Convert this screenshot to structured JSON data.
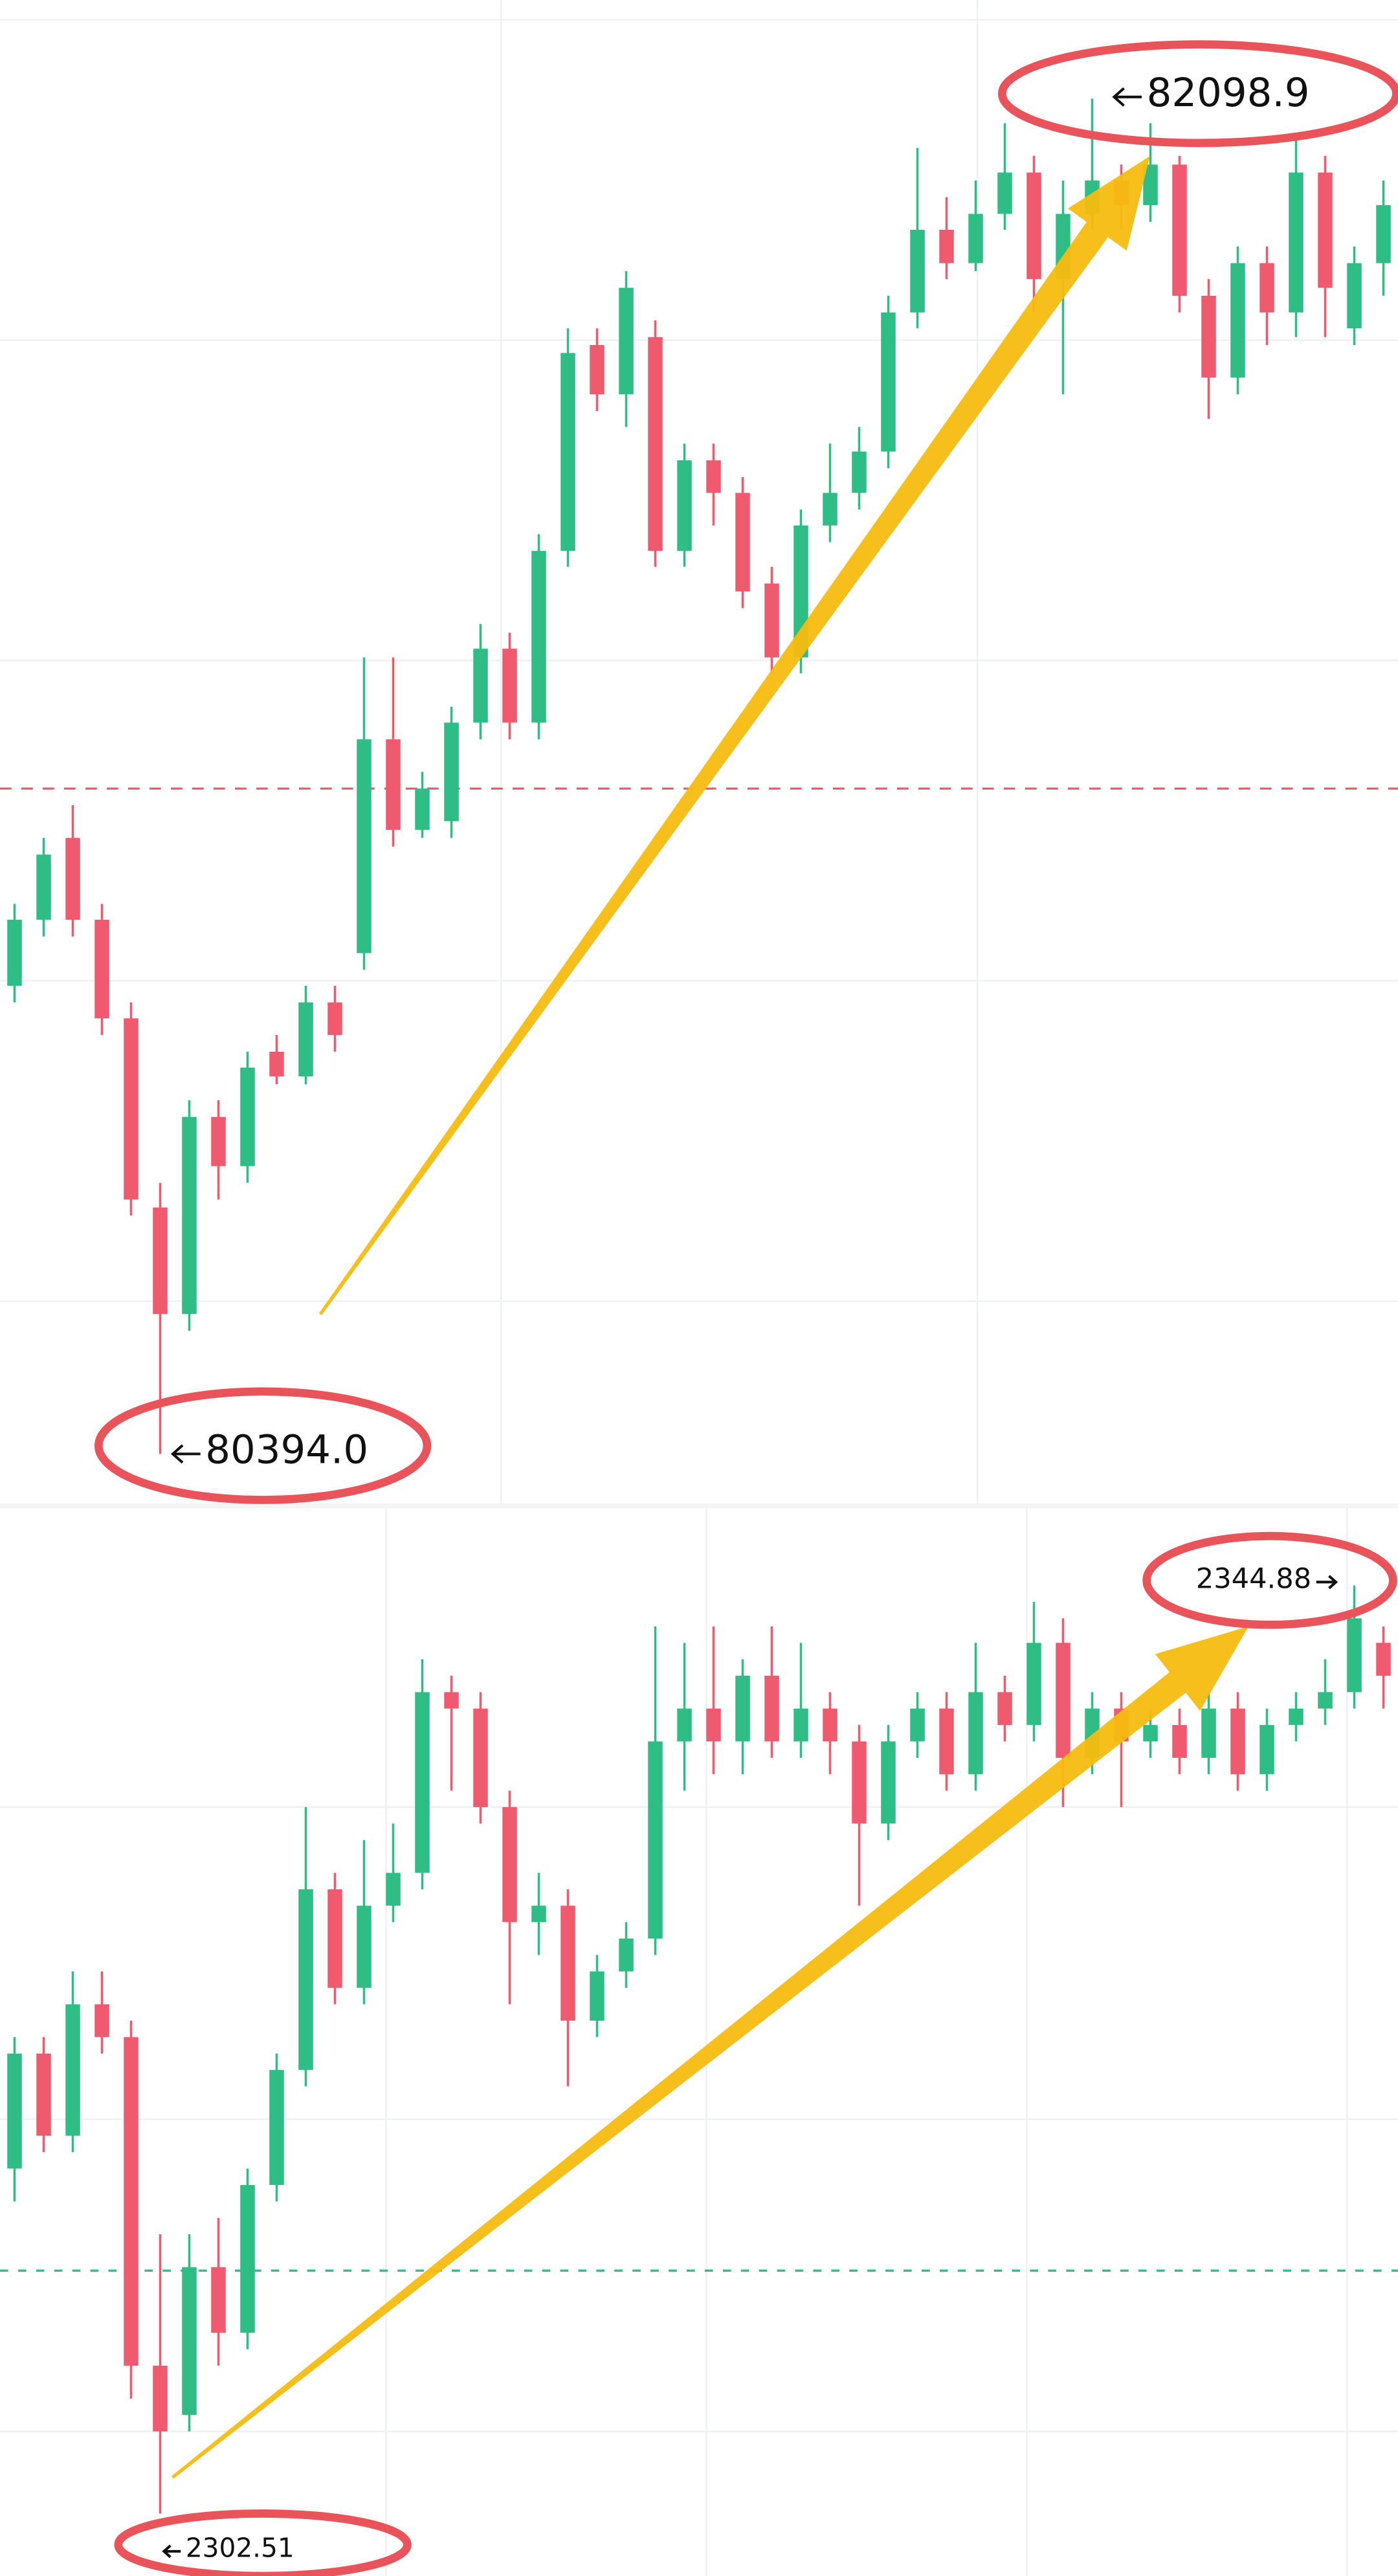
{
  "chart_data": [
    {
      "type": "candlestick",
      "up_color": "#2ebd85",
      "down_color": "#ef5a6f",
      "ylim": [
        80332,
        82223
      ],
      "price_line": 81231,
      "price_line_color": "#ef5a6f",
      "ohlc": [
        [
          80983,
          81086,
          80962,
          81066
        ],
        [
          81066,
          81169,
          81045,
          81148
        ],
        [
          81169,
          81210,
          81045,
          81066
        ],
        [
          81066,
          81086,
          80921,
          80942
        ],
        [
          80942,
          80962,
          80694,
          80714
        ],
        [
          80704,
          80735,
          80394.0,
          80570
        ],
        [
          80570,
          80839,
          80549,
          80818
        ],
        [
          80818,
          80839,
          80714,
          80756
        ],
        [
          80756,
          80900,
          80735,
          80880
        ],
        [
          80900,
          80921,
          80859,
          80869
        ],
        [
          80869,
          80983,
          80859,
          80962
        ],
        [
          80962,
          80983,
          80900,
          80921
        ],
        [
          81024,
          81396,
          81003,
          81293
        ],
        [
          81293,
          81396,
          81158,
          81179
        ],
        [
          81179,
          81252,
          81169,
          81231
        ],
        [
          81190,
          81334,
          81169,
          81314
        ],
        [
          81314,
          81438,
          81293,
          81407
        ],
        [
          81407,
          81427,
          81293,
          81314
        ],
        [
          81314,
          81551,
          81293,
          81530
        ],
        [
          81530,
          81810,
          81510,
          81779
        ],
        [
          81789,
          81810,
          81706,
          81727
        ],
        [
          81727,
          81882,
          81686,
          81861
        ],
        [
          81799,
          81820,
          81510,
          81530
        ],
        [
          81530,
          81665,
          81510,
          81644
        ],
        [
          81644,
          81665,
          81562,
          81603
        ],
        [
          81603,
          81623,
          81458,
          81479
        ],
        [
          81489,
          81510,
          81376,
          81396
        ],
        [
          81396,
          81582,
          81376,
          81562
        ],
        [
          81562,
          81665,
          81541,
          81603
        ],
        [
          81603,
          81686,
          81582,
          81655
        ],
        [
          81655,
          81851,
          81634,
          81830
        ],
        [
          81830,
          82037,
          81810,
          81934
        ],
        [
          81934,
          81975,
          81872,
          81892
        ],
        [
          81892,
          81996,
          81882,
          81954
        ],
        [
          81954,
          82068,
          81934,
          82006
        ],
        [
          82006,
          82027,
          81830,
          81872
        ],
        [
          81872,
          81996,
          81727,
          81954
        ],
        [
          81954,
          82098.9,
          81934,
          81996
        ],
        [
          81996,
          82016,
          81934,
          81965
        ],
        [
          81965,
          82068,
          81944,
          82016
        ],
        [
          82016,
          82027,
          81830,
          81851
        ],
        [
          81851,
          81872,
          81696,
          81748
        ],
        [
          81748,
          81913,
          81727,
          81892
        ],
        [
          81892,
          81913,
          81789,
          81830
        ],
        [
          81830,
          82047,
          81799,
          82006
        ],
        [
          82006,
          82027,
          81799,
          81861
        ],
        [
          81810,
          81913,
          81789,
          81892
        ],
        [
          81892,
          81996,
          81851,
          81965
        ]
      ],
      "annotations": [
        {
          "text": "82098.9",
          "value": 82098.9
        },
        {
          "text": "80394.0",
          "value": 80394.0
        }
      ]
    },
    {
      "type": "candlestick",
      "up_color": "#2ebd85",
      "down_color": "#ef5a6f",
      "ylim": [
        2299.66,
        2348.41
      ],
      "price_line": 2313.6,
      "price_line_color": "#2ebd85",
      "ohlc": [
        [
          2318.26,
          2324.26,
          2316.76,
          2323.51
        ],
        [
          2323.51,
          2324.26,
          2319.01,
          2319.76
        ],
        [
          2319.76,
          2327.26,
          2319.01,
          2325.76
        ],
        [
          2325.76,
          2327.26,
          2323.51,
          2324.26
        ],
        [
          2324.26,
          2325.01,
          2307.76,
          2309.26
        ],
        [
          2309.26,
          2315.26,
          2302.51,
          2306.26
        ],
        [
          2307.01,
          2315.26,
          2306.26,
          2313.76
        ],
        [
          2313.76,
          2316.01,
          2309.26,
          2310.76
        ],
        [
          2310.76,
          2318.26,
          2310.01,
          2317.51
        ],
        [
          2317.51,
          2323.51,
          2316.76,
          2322.76
        ],
        [
          2322.76,
          2334.76,
          2322.01,
          2331.01
        ],
        [
          2331.01,
          2331.76,
          2325.76,
          2326.51
        ],
        [
          2326.51,
          2333.26,
          2325.76,
          2330.26
        ],
        [
          2330.26,
          2334.01,
          2329.51,
          2331.76
        ],
        [
          2331.76,
          2341.51,
          2331.01,
          2340.01
        ],
        [
          2340.01,
          2340.76,
          2335.51,
          2339.26
        ],
        [
          2339.26,
          2340.01,
          2334.01,
          2334.76
        ],
        [
          2334.76,
          2335.51,
          2325.76,
          2329.51
        ],
        [
          2329.51,
          2331.76,
          2328.01,
          2330.26
        ],
        [
          2330.26,
          2331.01,
          2322.01,
          2325.01
        ],
        [
          2325.01,
          2328.01,
          2324.26,
          2327.26
        ],
        [
          2327.26,
          2329.51,
          2326.51,
          2328.76
        ],
        [
          2328.76,
          2343.01,
          2328.01,
          2337.76
        ],
        [
          2337.76,
          2342.26,
          2335.51,
          2339.26
        ],
        [
          2339.26,
          2343.01,
          2336.26,
          2337.76
        ],
        [
          2337.76,
          2341.51,
          2336.26,
          2340.76
        ],
        [
          2340.76,
          2343.01,
          2337.01,
          2337.76
        ],
        [
          2337.76,
          2342.26,
          2337.01,
          2339.26
        ],
        [
          2339.26,
          2340.01,
          2336.26,
          2337.76
        ],
        [
          2337.76,
          2338.51,
          2330.26,
          2334.01
        ],
        [
          2334.01,
          2338.51,
          2333.26,
          2337.76
        ],
        [
          2337.76,
          2340.01,
          2337.01,
          2339.26
        ],
        [
          2339.26,
          2340.01,
          2335.51,
          2336.26
        ],
        [
          2336.26,
          2342.26,
          2335.51,
          2340.01
        ],
        [
          2340.01,
          2340.76,
          2337.76,
          2338.51
        ],
        [
          2338.51,
          2344.13,
          2337.76,
          2342.26
        ],
        [
          2342.26,
          2343.38,
          2334.76,
          2337.01
        ],
        [
          2337.01,
          2340.01,
          2336.26,
          2339.26
        ],
        [
          2339.26,
          2340.01,
          2334.76,
          2337.76
        ],
        [
          2337.76,
          2339.26,
          2337.01,
          2338.51
        ],
        [
          2338.51,
          2339.26,
          2336.26,
          2337.01
        ],
        [
          2337.01,
          2340.01,
          2336.26,
          2339.26
        ],
        [
          2339.26,
          2340.01,
          2335.51,
          2336.26
        ],
        [
          2336.26,
          2339.26,
          2335.51,
          2338.51
        ],
        [
          2338.51,
          2340.01,
          2337.76,
          2339.26
        ],
        [
          2339.26,
          2341.51,
          2338.51,
          2340.01
        ],
        [
          2340.01,
          2344.88,
          2339.26,
          2343.38
        ],
        [
          2342.26,
          2343.01,
          2339.26,
          2340.76
        ]
      ],
      "annotations": [
        {
          "text": "2344.88",
          "value": 2344.88
        },
        {
          "text": "2302.51",
          "value": 2302.51
        }
      ]
    }
  ]
}
